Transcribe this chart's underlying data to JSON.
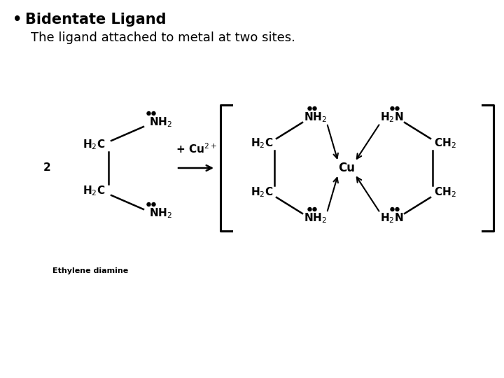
{
  "bg_color": "#ffffff",
  "text_color": "#000000",
  "title_fontsize": 15,
  "subtitle_fontsize": 13,
  "chem_fontsize": 11,
  "small_fontsize": 8,
  "title_text": "Bidentate Ligand",
  "subtitle_text": "The ligand attached to metal at two sites.",
  "ethylene_label": "Ethylene diamine",
  "num2_label": "2",
  "cu_label": "Cu",
  "cu2_label": "+ Cu$^{2+}$"
}
